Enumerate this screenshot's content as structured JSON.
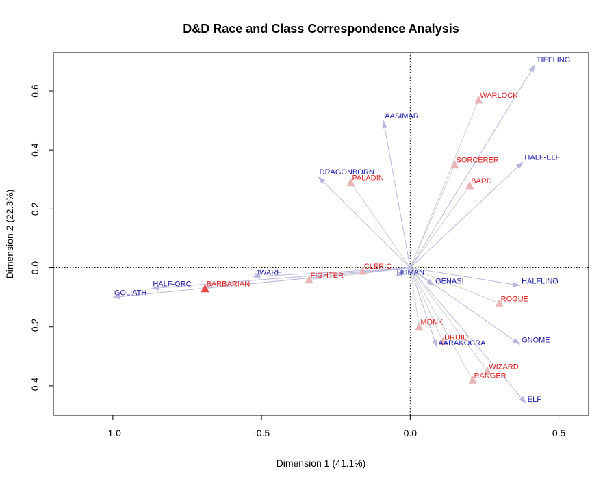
{
  "chart_data": {
    "type": "scatter",
    "title": "D&D Race and Class Correspondence Analysis",
    "xlabel": "Dimension 1 (41.1%)",
    "ylabel": "Dimension 2 (22.3%)",
    "xlim": [
      -1.2,
      0.6
    ],
    "ylim": [
      -0.5,
      0.73
    ],
    "xticks": [
      -1.0,
      -0.5,
      0.0,
      0.5
    ],
    "yticks": [
      -0.4,
      -0.2,
      0.0,
      0.2,
      0.4,
      0.6
    ],
    "grid": false,
    "reference_lines": {
      "x": 0,
      "y": 0,
      "style": "dotted"
    },
    "colors": {
      "races": "#1a1aaa",
      "classes": "#dd2222",
      "race_arrow": "#b8b8e0",
      "class_arrow": "#cfcfcf"
    },
    "races": [
      {
        "label": "TIEFLING",
        "x": 0.42,
        "y": 0.69
      },
      {
        "label": "AASIMAR",
        "x": -0.09,
        "y": 0.5
      },
      {
        "label": "HALF-ELF",
        "x": 0.38,
        "y": 0.36
      },
      {
        "label": "DRAGONBORN",
        "x": -0.31,
        "y": 0.31
      },
      {
        "label": "DWARF",
        "x": -0.53,
        "y": -0.03
      },
      {
        "label": "HALF-ORC",
        "x": -0.87,
        "y": -0.07
      },
      {
        "label": "GOLIATH",
        "x": -1.0,
        "y": -0.1
      },
      {
        "label": "HUMAN",
        "x": -0.05,
        "y": -0.03
      },
      {
        "label": "GENASI",
        "x": 0.08,
        "y": -0.06
      },
      {
        "label": "HALFLING",
        "x": 0.37,
        "y": -0.06
      },
      {
        "label": "GNOME",
        "x": 0.37,
        "y": -0.26
      },
      {
        "label": "AARAKOCRA",
        "x": 0.09,
        "y": -0.27
      },
      {
        "label": "ELF",
        "x": 0.39,
        "y": -0.46
      }
    ],
    "classes": [
      {
        "label": "WARLOCK",
        "x": 0.23,
        "y": 0.57
      },
      {
        "label": "SORCERER",
        "x": 0.15,
        "y": 0.35
      },
      {
        "label": "BARD",
        "x": 0.2,
        "y": 0.28
      },
      {
        "label": "PALADIN",
        "x": -0.2,
        "y": 0.29
      },
      {
        "label": "CLERIC",
        "x": -0.16,
        "y": -0.01
      },
      {
        "label": "FIGHTER",
        "x": -0.34,
        "y": -0.04
      },
      {
        "label": "BARBARIAN",
        "x": -0.69,
        "y": -0.07
      },
      {
        "label": "ROGUE",
        "x": 0.3,
        "y": -0.12
      },
      {
        "label": "MONK",
        "x": 0.03,
        "y": -0.2
      },
      {
        "label": "DRUID",
        "x": 0.11,
        "y": -0.25
      },
      {
        "label": "WIZARD",
        "x": 0.26,
        "y": -0.35
      },
      {
        "label": "RANGER",
        "x": 0.21,
        "y": -0.38
      }
    ]
  }
}
